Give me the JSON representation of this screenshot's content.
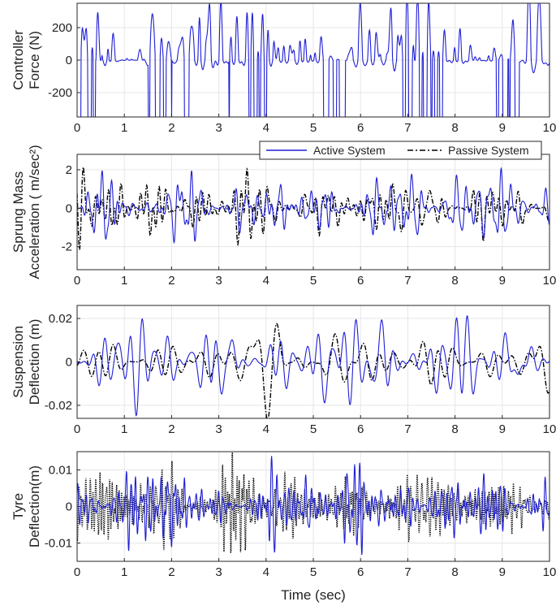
{
  "figure": {
    "xlabel": "Time (sec)",
    "legend": {
      "placement": "top-right",
      "entries": [
        "Active System",
        "Passive System"
      ]
    }
  },
  "colors": {
    "active": "#1f1fd6",
    "passive": "#000000",
    "grid": "#e6e6e6",
    "axes": "#262626"
  },
  "chart_data": [
    {
      "type": "line",
      "id": "force",
      "ylabel": [
        "Controller",
        "Force (N)"
      ],
      "xlim": [
        0,
        10
      ],
      "ylim": [
        -350,
        350
      ],
      "xticks": [
        0,
        1,
        2,
        3,
        4,
        5,
        6,
        7,
        8,
        9,
        10
      ],
      "yticks": [
        -200,
        0,
        200
      ],
      "grid": true,
      "series": [
        {
          "name": "Active System",
          "style": "solid",
          "color": "#1f1fd6",
          "params": {
            "amp": 230,
            "seed": 11,
            "f0": 6.0,
            "spikes": true,
            "clip": 350
          }
        }
      ]
    },
    {
      "type": "line",
      "id": "accel",
      "ylabel": [
        "Sprung Mass",
        "Acceleration ( m/sec²)"
      ],
      "xlim": [
        0,
        10
      ],
      "ylim": [
        -3.2,
        2.8
      ],
      "xticks": [
        0,
        1,
        2,
        3,
        4,
        5,
        6,
        7,
        8,
        9,
        10
      ],
      "yticks": [
        -2,
        0,
        2
      ],
      "grid": true,
      "series": [
        {
          "name": "Active System",
          "style": "solid",
          "color": "#1f1fd6",
          "params": {
            "amp": 0.9,
            "seed": 23,
            "f0": 5.0
          }
        },
        {
          "name": "Passive System",
          "style": "dashdot",
          "color": "#000000",
          "params": {
            "amp": 1.35,
            "seed": 37,
            "f0": 4.5
          }
        }
      ]
    },
    {
      "type": "line",
      "id": "susp",
      "ylabel": [
        "Suspension",
        "Deflection (m)"
      ],
      "xlim": [
        0,
        10
      ],
      "ylim": [
        -0.026,
        0.026
      ],
      "xticks": [
        0,
        1,
        2,
        3,
        4,
        5,
        6,
        7,
        8,
        9,
        10
      ],
      "yticks": [
        -0.02,
        0,
        0.02
      ],
      "grid": true,
      "series": [
        {
          "name": "Active System",
          "style": "solid",
          "color": "#1f1fd6",
          "params": {
            "amp": 0.009,
            "seed": 41,
            "f0": 2.6
          }
        },
        {
          "name": "Passive System",
          "style": "dashdot",
          "color": "#000000",
          "params": {
            "amp": 0.011,
            "seed": 53,
            "f0": 2.2
          }
        }
      ]
    },
    {
      "type": "line",
      "id": "tyre",
      "ylabel": [
        "Tyre",
        "Deflection(m)"
      ],
      "xlim": [
        0,
        10
      ],
      "ylim": [
        -0.015,
        0.015
      ],
      "xticks": [
        0,
        1,
        2,
        3,
        4,
        5,
        6,
        7,
        8,
        9,
        10
      ],
      "yticks": [
        -0.01,
        0,
        0.01
      ],
      "grid": true,
      "series": [
        {
          "name": "Active System",
          "style": "solid",
          "color": "#1f1fd6",
          "params": {
            "amp": 0.0055,
            "seed": 67,
            "f0": 10.0
          }
        },
        {
          "name": "Passive System",
          "style": "dotted",
          "color": "#000000",
          "params": {
            "amp": 0.0065,
            "seed": 71,
            "f0": 10.0
          }
        }
      ]
    }
  ]
}
